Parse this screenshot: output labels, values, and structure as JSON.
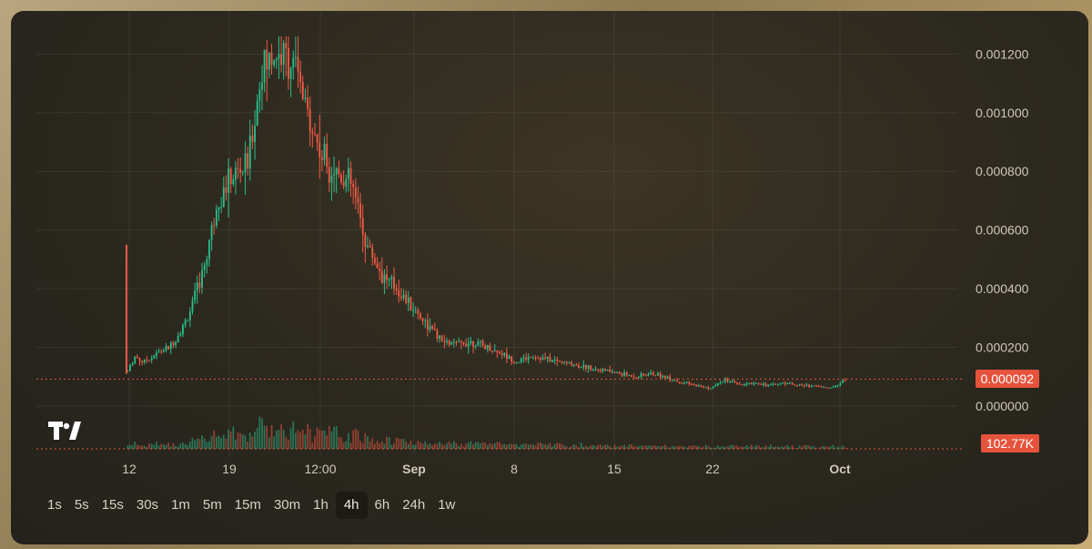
{
  "colors": {
    "up": "#2bbd8a",
    "down": "#ef5a45",
    "accent": "#e5533c",
    "axis_text": "#cfc8b8",
    "grid": "rgba(255,255,255,0.07)"
  },
  "logo": {
    "icon": "tradingview-logo-icon"
  },
  "timeframes": [
    "1s",
    "5s",
    "15s",
    "30s",
    "1m",
    "5m",
    "15m",
    "30m",
    "1h",
    "4h",
    "6h",
    "24h",
    "1w"
  ],
  "active_timeframe": "4h",
  "last_price_label": "0.000092",
  "volume_label": "102.77K",
  "chart_data": {
    "type": "candlestick",
    "x_ticks": [
      {
        "label": "12",
        "bold": false
      },
      {
        "label": "19",
        "bold": false
      },
      {
        "label": "12:00",
        "bold": false
      },
      {
        "label": "Sep",
        "bold": true
      },
      {
        "label": "8",
        "bold": false
      },
      {
        "label": "15",
        "bold": false
      },
      {
        "label": "22",
        "bold": false
      },
      {
        "label": "Oct",
        "bold": true
      }
    ],
    "y_ticks": [
      "0.001200",
      "0.001000",
      "0.000800",
      "0.000600",
      "0.000400",
      "0.000200",
      "0.000000"
    ],
    "ylim": [
      0,
      0.00126
    ],
    "price_path": [
      [
        0,
        0.00012
      ],
      [
        0.5,
        0.00017
      ],
      [
        1,
        0.00015
      ],
      [
        2,
        0.00018
      ],
      [
        3,
        0.00021
      ],
      [
        4,
        0.0003
      ],
      [
        5,
        0.00045
      ],
      [
        6,
        0.0007
      ],
      [
        7,
        0.00078
      ],
      [
        8,
        0.00082
      ],
      [
        9,
        0.00115
      ],
      [
        10,
        0.0012
      ],
      [
        11,
        0.00118
      ],
      [
        12,
        0.001
      ],
      [
        13,
        0.00085
      ],
      [
        14,
        0.0008
      ],
      [
        15,
        0.00075
      ],
      [
        16,
        0.00055
      ],
      [
        17,
        0.00045
      ],
      [
        18,
        0.0004
      ],
      [
        19,
        0.00034
      ],
      [
        20,
        0.00028
      ],
      [
        21,
        0.00022
      ],
      [
        22,
        0.00021
      ],
      [
        23,
        0.00022
      ],
      [
        24,
        0.0002
      ],
      [
        25,
        0.00018
      ],
      [
        26,
        0.00015
      ],
      [
        27,
        0.00017
      ],
      [
        28,
        0.00016
      ],
      [
        29,
        0.00015
      ],
      [
        30,
        0.00014
      ],
      [
        31,
        0.00013
      ],
      [
        32,
        0.00012
      ],
      [
        33,
        0.00011
      ],
      [
        34,
        0.0001
      ],
      [
        35,
        0.00011
      ],
      [
        36,
        0.0001
      ],
      [
        37,
        8e-05
      ],
      [
        38,
        7e-05
      ],
      [
        39,
        6e-05
      ],
      [
        40,
        9e-05
      ],
      [
        41,
        7e-05
      ],
      [
        42,
        8e-05
      ],
      [
        43,
        7e-05
      ],
      [
        44,
        8e-05
      ],
      [
        45,
        7e-05
      ],
      [
        46,
        7e-05
      ],
      [
        47,
        6e-05
      ],
      [
        48,
        9.2e-05
      ]
    ],
    "last_price": 9.2e-05,
    "last_volume": "102.77K"
  }
}
